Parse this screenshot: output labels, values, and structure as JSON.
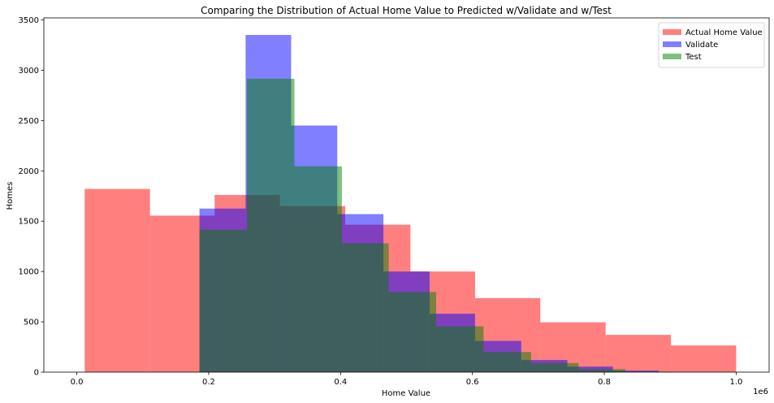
{
  "chart_data": {
    "type": "bar",
    "title": "Comparing the Distribution of Actual Home Value to Predicted w/Validate and w/Test",
    "xlabel": "Home Value",
    "ylabel": "Homes",
    "x_offset_label": "1e6",
    "xlim": [
      -0.05,
      1.05
    ],
    "ylim": [
      0,
      3520
    ],
    "xticks": [
      0.0,
      0.2,
      0.4,
      0.6,
      0.8,
      1.0
    ],
    "xtick_labels": [
      "0.0",
      "0.2",
      "0.4",
      "0.6",
      "0.8",
      "1.0"
    ],
    "yticks": [
      0,
      500,
      1000,
      1500,
      2000,
      2500,
      3000,
      3500
    ],
    "ytick_labels": [
      "0",
      "500",
      "1000",
      "1500",
      "2000",
      "2500",
      "3000",
      "3500"
    ],
    "grid": false,
    "legend_position": "top-right",
    "series": [
      {
        "name": "Actual Home Value",
        "color": "#ff0000",
        "opacity": 0.5,
        "edges": [
          0.012,
          0.111,
          0.209,
          0.308,
          0.407,
          0.506,
          0.604,
          0.703,
          0.802,
          0.901,
          1.0
        ],
        "values": [
          1820,
          1555,
          1760,
          1650,
          1465,
          1000,
          735,
          495,
          370,
          265
        ]
      },
      {
        "name": "Validate",
        "color": "#0000ff",
        "opacity": 0.5,
        "edges": [
          0.186,
          0.256,
          0.325,
          0.395,
          0.465,
          0.535,
          0.604,
          0.674,
          0.744,
          0.813,
          0.883
        ],
        "values": [
          1625,
          3350,
          2450,
          1570,
          1000,
          580,
          310,
          120,
          55,
          15
        ]
      },
      {
        "name": "Test",
        "color": "#008000",
        "opacity": 0.5,
        "edges": [
          0.186,
          0.258,
          0.33,
          0.402,
          0.473,
          0.545,
          0.617,
          0.689,
          0.761,
          0.832,
          0.904
        ],
        "values": [
          1415,
          2915,
          2045,
          1280,
          795,
          455,
          200,
          90,
          30,
          5
        ]
      }
    ]
  }
}
